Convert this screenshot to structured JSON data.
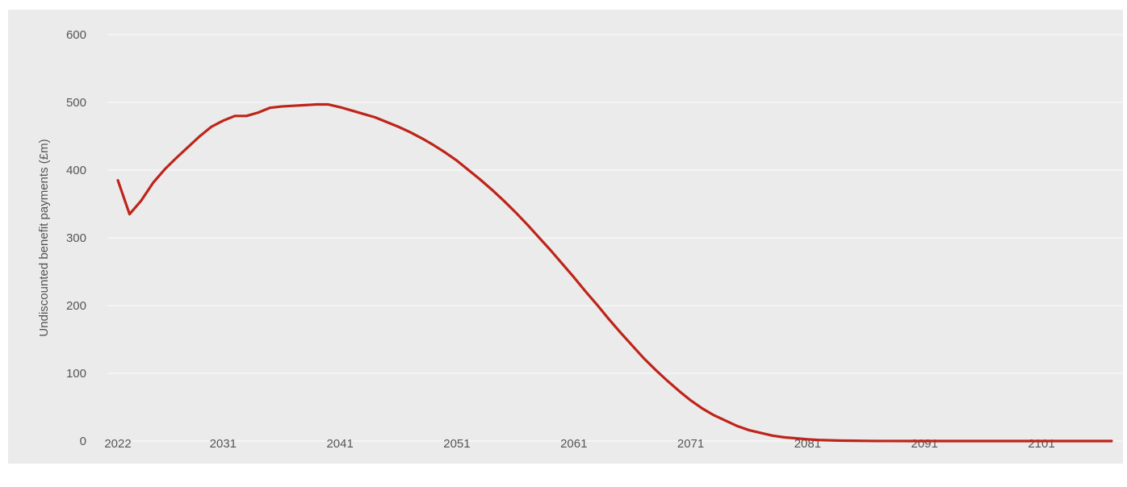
{
  "chart_data": {
    "type": "line",
    "title": "",
    "xlabel": "",
    "ylabel": "Undiscounted benefit payments (£m)",
    "ylim": [
      0,
      600
    ],
    "xlim": [
      2022,
      2107
    ],
    "yticks": [
      0,
      100,
      200,
      300,
      400,
      500,
      600
    ],
    "xticks": [
      2022,
      2031,
      2041,
      2051,
      2061,
      2071,
      2081,
      2091,
      2101
    ],
    "grid": true,
    "legend": "none",
    "colors": {
      "background": "#ebebeb",
      "grid": "#f7f7f7",
      "line": "#be2419"
    },
    "series": [
      {
        "x": [
          2022,
          2023,
          2024,
          2025,
          2026,
          2027,
          2028,
          2029,
          2030,
          2031,
          2032,
          2033,
          2034,
          2035,
          2036,
          2037,
          2038,
          2039,
          2040,
          2041,
          2042,
          2043,
          2044,
          2045,
          2046,
          2047,
          2048,
          2049,
          2050,
          2051,
          2052,
          2053,
          2054,
          2055,
          2056,
          2057,
          2058,
          2059,
          2060,
          2061,
          2062,
          2063,
          2064,
          2065,
          2066,
          2067,
          2068,
          2069,
          2070,
          2071,
          2072,
          2073,
          2074,
          2075,
          2076,
          2077,
          2078,
          2079,
          2080,
          2081,
          2082,
          2083,
          2084,
          2085,
          2086,
          2087,
          2088,
          2090,
          2095,
          2100,
          2107
        ],
        "values": [
          385,
          335,
          355,
          381,
          401,
          418,
          434,
          450,
          464,
          473,
          480,
          480,
          485,
          492,
          494,
          495,
          496,
          497,
          497,
          493,
          488,
          483,
          478,
          471,
          464,
          456,
          447,
          437,
          426,
          414,
          400,
          386,
          371,
          355,
          338,
          320,
          301,
          282,
          262,
          242,
          221,
          201,
          180,
          160,
          141,
          122,
          105,
          89,
          74,
          60,
          48,
          38,
          30,
          22,
          16,
          12,
          8,
          5.5,
          4,
          2.5,
          1.5,
          1,
          0.6,
          0.4,
          0.2,
          0.1,
          0.05,
          0,
          0,
          0,
          0
        ]
      }
    ]
  }
}
